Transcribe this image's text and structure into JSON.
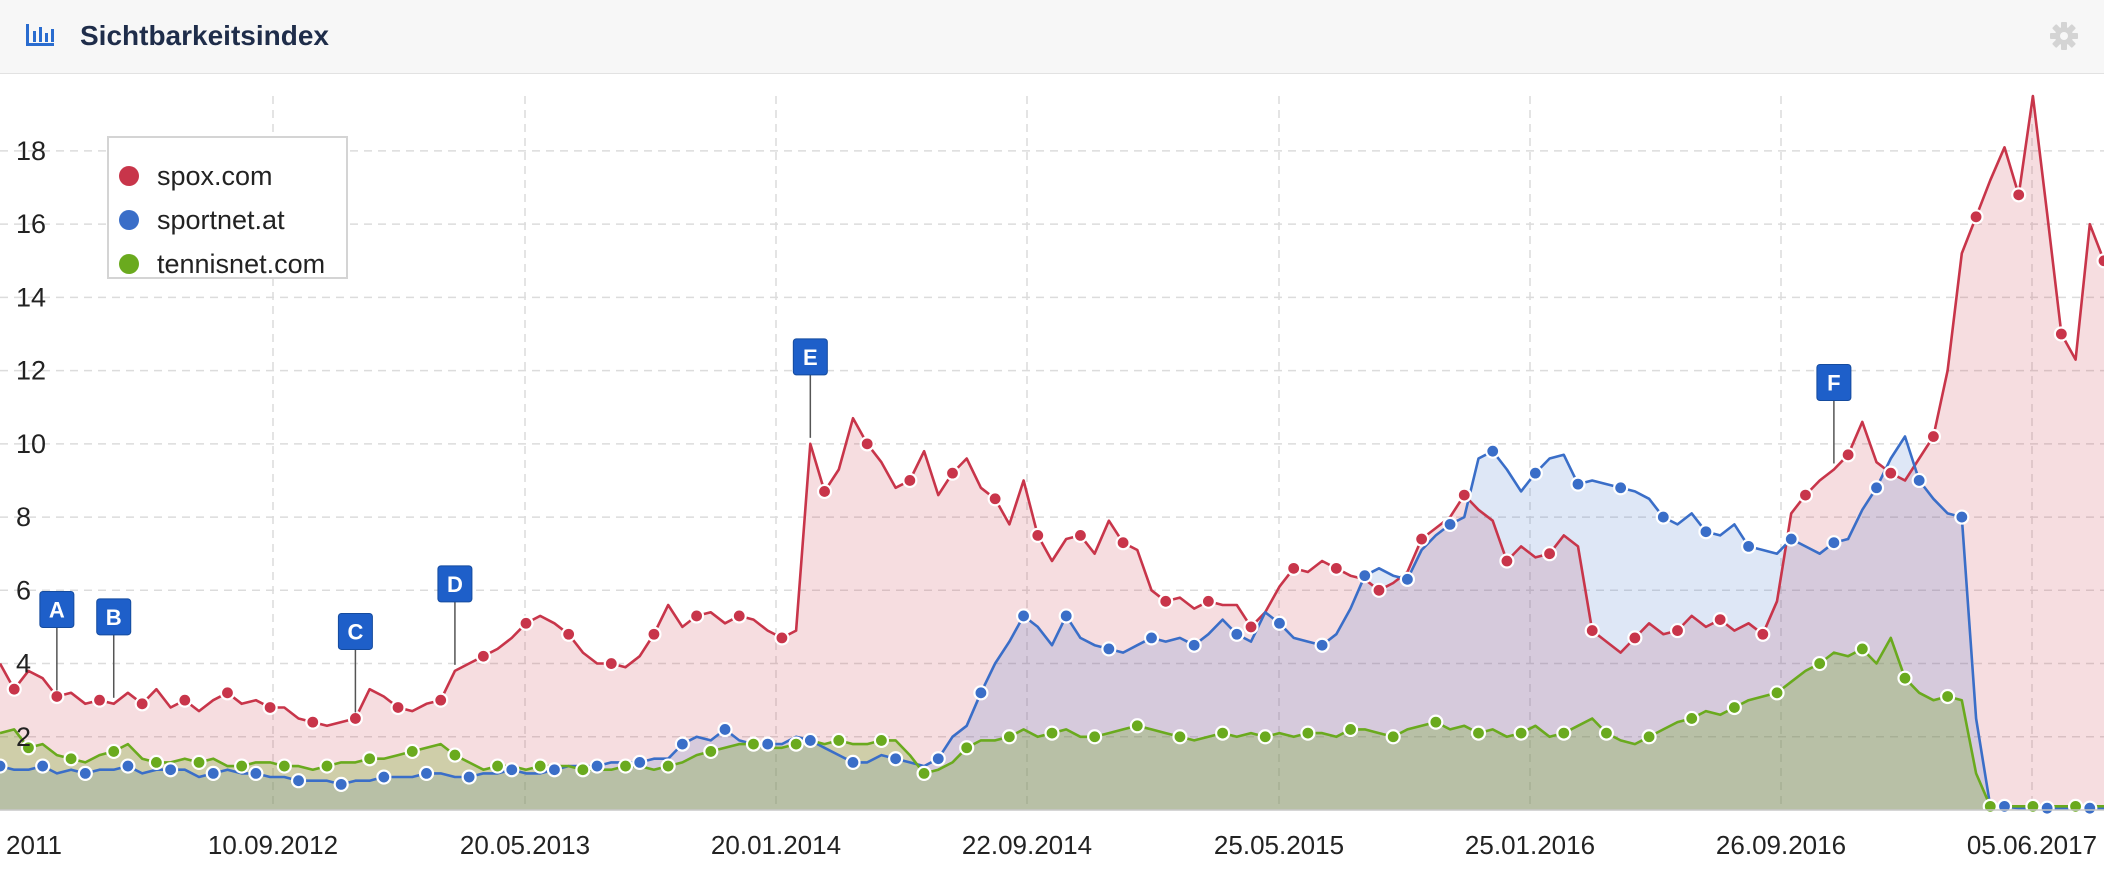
{
  "panel": {
    "title": "Sichtbarkeitsindex",
    "icon": "bar-chart-icon",
    "settings_icon": "gear-icon"
  },
  "chart_data": {
    "type": "area",
    "title": "Sichtbarkeitsindex",
    "xlabel": "",
    "ylabel": "",
    "grid": true,
    "legend_position": "top-left",
    "ylim": [
      0,
      19.5
    ],
    "y_ticks": [
      2,
      4,
      6,
      8,
      10,
      12,
      14,
      16,
      18
    ],
    "x_tick_labels": [
      "2011",
      "10.09.2012",
      "20.05.2013",
      "20.01.2014",
      "22.09.2014",
      "25.05.2015",
      "25.01.2016",
      "26.09.2016",
      "05.06.2017"
    ],
    "series": [
      {
        "name": "spox.com",
        "color": "#c8354a",
        "fill": "#c8354a",
        "values": [
          4.0,
          3.3,
          3.8,
          3.6,
          3.1,
          3.2,
          2.9,
          3.0,
          2.9,
          3.2,
          2.9,
          3.3,
          2.8,
          3.0,
          2.7,
          3.0,
          3.2,
          2.9,
          3.0,
          2.8,
          2.8,
          2.5,
          2.4,
          2.3,
          2.4,
          2.5,
          3.3,
          3.1,
          2.8,
          2.7,
          2.9,
          3.0,
          3.8,
          4.0,
          4.2,
          4.4,
          4.7,
          5.1,
          5.3,
          5.1,
          4.8,
          4.3,
          4.0,
          4.0,
          3.9,
          4.2,
          4.8,
          5.6,
          5.0,
          5.3,
          5.4,
          5.1,
          5.3,
          5.2,
          4.9,
          4.7,
          4.9,
          10.0,
          8.7,
          9.3,
          10.7,
          10.0,
          9.5,
          8.8,
          9.0,
          9.8,
          8.6,
          9.2,
          9.6,
          8.8,
          8.5,
          7.8,
          9.0,
          7.5,
          6.8,
          7.4,
          7.5,
          7.0,
          7.9,
          7.3,
          7.1,
          6.0,
          5.7,
          5.8,
          5.5,
          5.7,
          5.6,
          5.6,
          5.0,
          5.4,
          6.1,
          6.6,
          6.5,
          6.8,
          6.6,
          6.4,
          6.3,
          6.0,
          6.2,
          6.5,
          7.4,
          7.7,
          8.0,
          8.6,
          8.2,
          7.9,
          6.8,
          7.2,
          6.9,
          7.0,
          7.5,
          7.2,
          4.9,
          4.6,
          4.3,
          4.7,
          5.1,
          4.8,
          4.9,
          5.3,
          5.0,
          5.2,
          4.9,
          5.1,
          4.8,
          5.7,
          8.1,
          8.6,
          9.0,
          9.3,
          9.7,
          10.6,
          9.5,
          9.2,
          9.0,
          9.6,
          10.2,
          12.0,
          15.2,
          16.2,
          17.2,
          18.1,
          16.8,
          19.5,
          16.3,
          13.0,
          12.3,
          16.0,
          15.0
        ]
      },
      {
        "name": "sportnet.at",
        "color": "#3a6ec8",
        "fill": "#3a6ec8",
        "values": [
          1.2,
          1.1,
          1.1,
          1.2,
          1.0,
          1.1,
          1.0,
          1.1,
          1.1,
          1.2,
          1.0,
          1.1,
          1.1,
          1.1,
          0.9,
          1.0,
          1.1,
          1.0,
          1.0,
          0.9,
          0.9,
          0.8,
          0.8,
          0.8,
          0.7,
          0.8,
          0.8,
          0.9,
          0.9,
          0.9,
          1.0,
          1.0,
          0.9,
          0.9,
          1.0,
          1.0,
          1.1,
          1.0,
          1.0,
          1.1,
          1.2,
          1.2,
          1.2,
          1.3,
          1.3,
          1.3,
          1.4,
          1.4,
          1.8,
          2.0,
          1.9,
          2.2,
          1.9,
          1.8,
          1.8,
          1.8,
          2.0,
          1.9,
          1.7,
          1.5,
          1.3,
          1.3,
          1.5,
          1.4,
          1.3,
          1.2,
          1.4,
          2.0,
          2.3,
          3.2,
          4.0,
          4.6,
          5.3,
          5.0,
          4.5,
          5.3,
          4.7,
          4.5,
          4.4,
          4.3,
          4.5,
          4.7,
          4.6,
          4.7,
          4.5,
          4.8,
          5.2,
          4.8,
          4.6,
          5.4,
          5.1,
          4.7,
          4.6,
          4.5,
          4.8,
          5.5,
          6.4,
          6.6,
          6.4,
          6.3,
          7.1,
          7.5,
          7.8,
          8.0,
          9.6,
          9.8,
          9.3,
          8.7,
          9.2,
          9.6,
          9.7,
          8.9,
          9.0,
          8.9,
          8.8,
          8.7,
          8.5,
          8.0,
          7.8,
          8.1,
          7.6,
          7.5,
          7.8,
          7.2,
          7.1,
          7.0,
          7.4,
          7.2,
          7.0,
          7.3,
          7.4,
          8.2,
          8.8,
          9.6,
          10.2,
          9.0,
          8.5,
          8.1,
          8.0,
          2.5,
          0.1,
          0.1,
          0.05,
          0.05,
          0.05,
          0.05,
          0.05,
          0.05,
          0.05,
          0.05,
          0.05,
          0.05
        ]
      },
      {
        "name": "tennisnet.com",
        "color": "#6aaa1e",
        "fill": "#6aaa1e",
        "values": [
          2.1,
          2.2,
          1.7,
          1.8,
          1.5,
          1.4,
          1.3,
          1.5,
          1.6,
          1.8,
          1.4,
          1.3,
          1.3,
          1.4,
          1.3,
          1.4,
          1.2,
          1.2,
          1.3,
          1.3,
          1.2,
          1.2,
          1.1,
          1.2,
          1.3,
          1.3,
          1.4,
          1.4,
          1.5,
          1.6,
          1.7,
          1.8,
          1.5,
          1.3,
          1.1,
          1.2,
          1.2,
          1.1,
          1.2,
          1.2,
          1.2,
          1.1,
          1.1,
          1.1,
          1.2,
          1.2,
          1.1,
          1.2,
          1.3,
          1.5,
          1.6,
          1.7,
          1.8,
          1.8,
          1.7,
          1.7,
          1.8,
          1.9,
          1.8,
          1.9,
          1.8,
          1.8,
          1.9,
          1.9,
          1.5,
          1.0,
          1.1,
          1.3,
          1.7,
          1.9,
          1.9,
          2.0,
          2.2,
          2.0,
          2.1,
          2.2,
          2.0,
          2.0,
          2.1,
          2.2,
          2.3,
          2.2,
          2.1,
          2.0,
          1.9,
          2.0,
          2.1,
          2.0,
          2.1,
          2.0,
          2.1,
          2.0,
          2.1,
          2.1,
          2.0,
          2.2,
          2.2,
          2.1,
          2.0,
          2.2,
          2.3,
          2.4,
          2.2,
          2.3,
          2.1,
          2.2,
          2.0,
          2.1,
          2.3,
          2.0,
          2.1,
          2.3,
          2.5,
          2.1,
          1.9,
          1.8,
          2.0,
          2.2,
          2.4,
          2.5,
          2.7,
          2.6,
          2.8,
          3.0,
          3.1,
          3.2,
          3.5,
          3.8,
          4.0,
          4.3,
          4.2,
          4.4,
          4.0,
          4.7,
          3.6,
          3.2,
          3.0,
          3.1,
          3.0,
          1.0,
          0.1,
          0.1,
          0.1,
          0.1,
          0.1,
          0.1,
          0.1,
          0.1,
          0.1,
          0.1,
          0.1,
          0.1,
          0.1
        ]
      }
    ],
    "annotations": [
      {
        "label": "A",
        "index": 4
      },
      {
        "label": "B",
        "index": 8
      },
      {
        "label": "C",
        "index": 25
      },
      {
        "label": "D",
        "index": 32
      },
      {
        "label": "E",
        "index": 57
      },
      {
        "label": "F",
        "index": 129
      }
    ]
  }
}
